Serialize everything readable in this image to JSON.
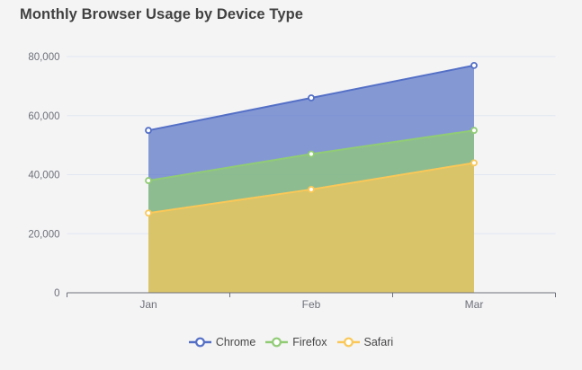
{
  "chart_data": {
    "type": "area",
    "title": "Monthly Browser Usage by Device Type",
    "categories": [
      "Jan",
      "Feb",
      "Mar"
    ],
    "series": [
      {
        "name": "Chrome",
        "color": "#5470c6",
        "values": [
          55000,
          66000,
          77000
        ]
      },
      {
        "name": "Firefox",
        "color": "#91cc75",
        "values": [
          38000,
          47000,
          55000
        ]
      },
      {
        "name": "Safari",
        "color": "#fac858",
        "values": [
          27000,
          35000,
          44000
        ]
      }
    ],
    "xlabel": "",
    "ylabel": "",
    "ylim": [
      0,
      80000
    ],
    "ytick_step": 20000,
    "ytick_labels": [
      "0",
      "20,000",
      "40,000",
      "60,000",
      "80,000"
    ],
    "grid": true,
    "legend_position": "bottom-center",
    "area_opacity": 0.7,
    "marker": "hollow-circle"
  },
  "style": {
    "background": "#f4f4f5",
    "title_color": "#414141",
    "axis_label_color": "#6e7079",
    "axis_line_color": "#6e7079",
    "grid_color": "#e0e6f1",
    "legend_text_color": "#464646"
  }
}
